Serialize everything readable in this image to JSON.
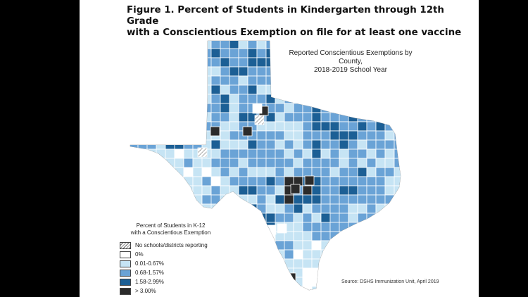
{
  "figure": {
    "title_line1": "Figure 1. Percent of Students in Kindergarten through 12th Grade",
    "title_line2": "with a Conscientious Exemption on file for at least one vaccine"
  },
  "map": {
    "heading_line1": "Reported Conscientious Exemptions by County,",
    "heading_line2": "2018-2019 School Year"
  },
  "legend": {
    "title_line1": "Percent of Students in K-12",
    "title_line2": "with a Conscientious Exemption",
    "items": [
      {
        "label": "No schools/districts reporting",
        "color": "hatch"
      },
      {
        "label": "0%",
        "color": "#ffffff"
      },
      {
        "label": "0.01-0.67%",
        "color": "#c6e4f4"
      },
      {
        "label": "0.68-1.57%",
        "color": "#6aa3d6"
      },
      {
        "label": "1.58-2.99%",
        "color": "#1c5f95"
      },
      {
        "label": "> 3.00%",
        "color": "#2b2b2b"
      }
    ]
  },
  "source": "Source: DSHS Immunization Unit, April 2019",
  "colors": {
    "frame": "#000000",
    "background": "#ffffff",
    "county_border": "#ffffff"
  }
}
